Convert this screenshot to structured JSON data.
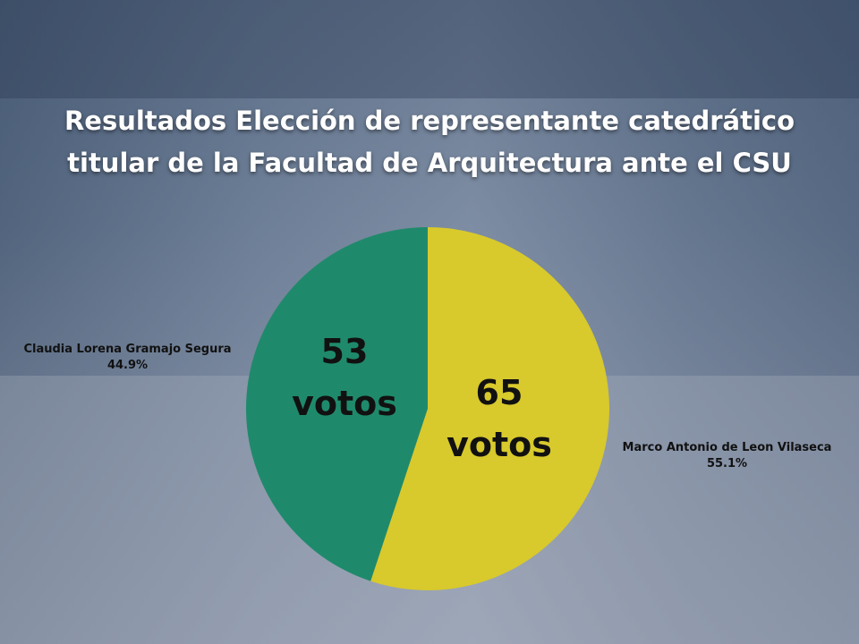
{
  "chart_data": {
    "type": "pie",
    "title": "Resultados Elección de representante catedrático titular de la Facultad de Arquitectura ante el CSU",
    "categories": [
      "Claudia Lorena Gramajo Segura",
      "Marco Antonio de Leon Vilaseca"
    ],
    "values": [
      53,
      65
    ],
    "value_labels": [
      "53 votos",
      "65 votos"
    ],
    "percent_labels": [
      "44.9%",
      "55.1%"
    ],
    "colors": [
      "#1f8a6b",
      "#d8c92c"
    ]
  }
}
